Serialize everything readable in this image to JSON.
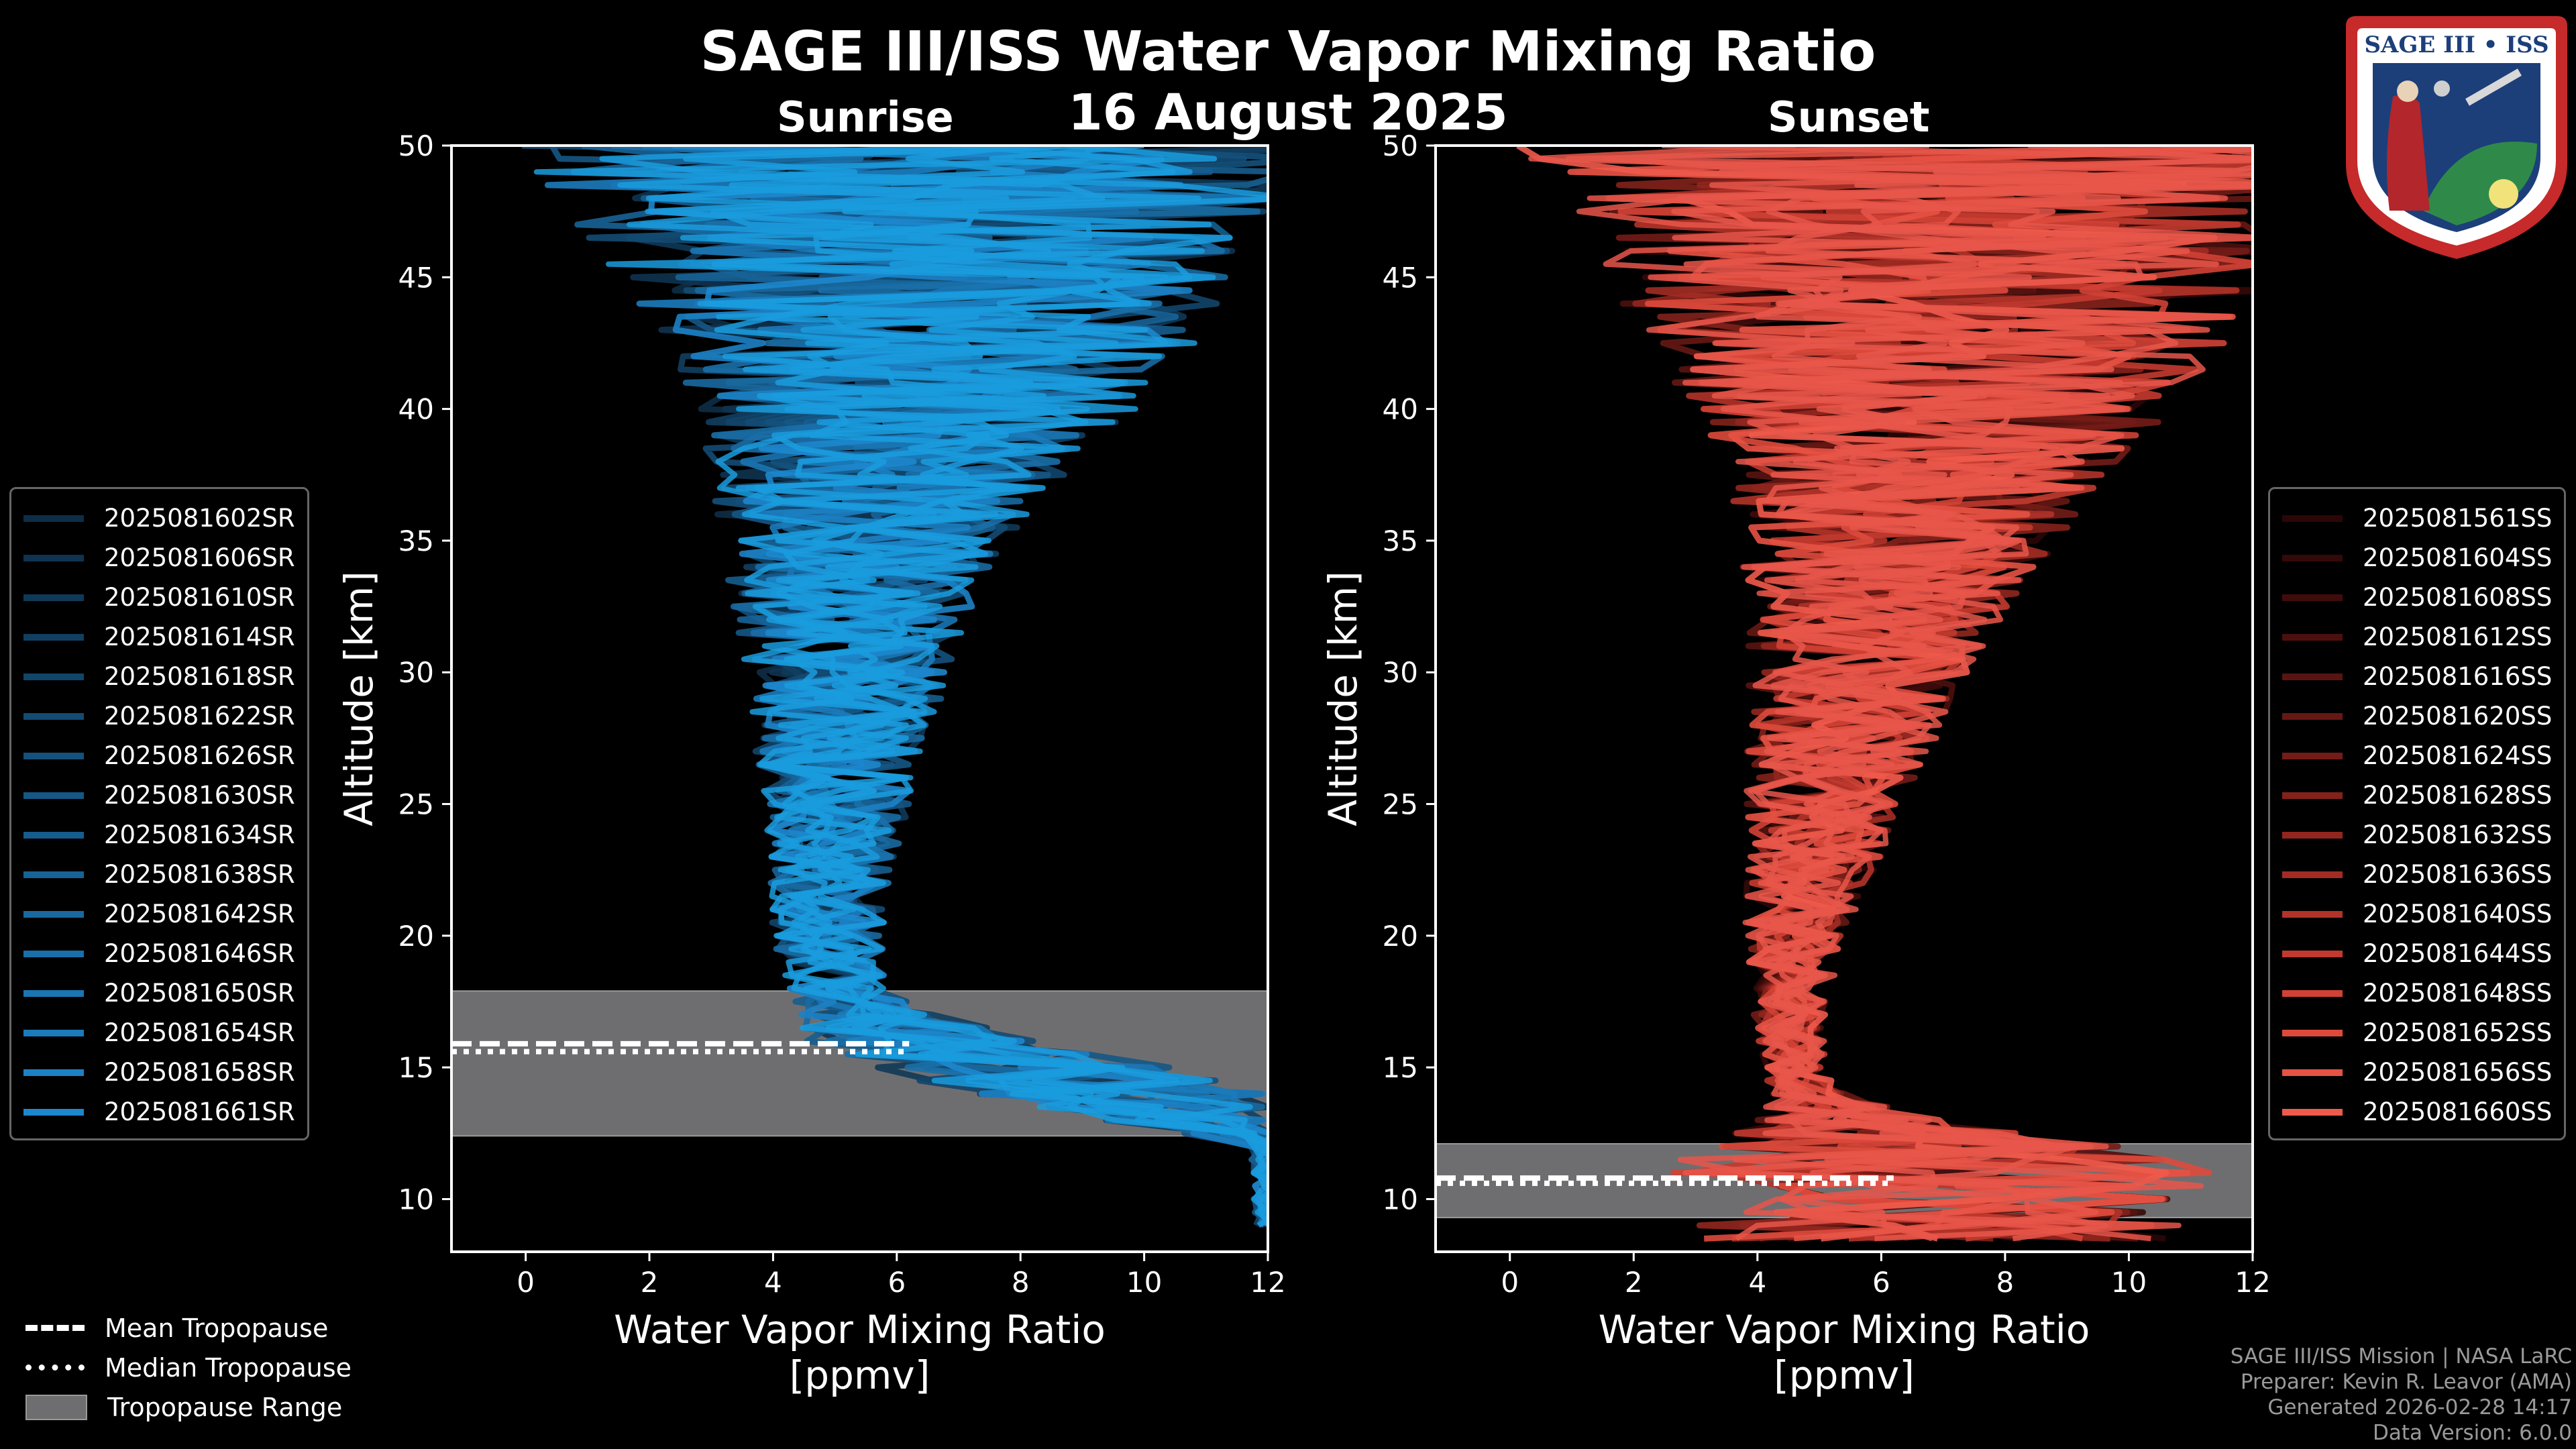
{
  "title": "SAGE III/ISS Water Vapor Mixing Ratio",
  "date": "16 August 2025",
  "logo_text": "SAGE III • ISS",
  "credits": [
    "SAGE III/ISS Mission | NASA LaRC",
    "Preparer: Kevin R. Leavor (AMA)",
    "Generated 2026-02-28 14:17",
    "Data Version: 6.0.0"
  ],
  "tropopause_legend": [
    {
      "label": "Mean Tropopause",
      "style": "dash"
    },
    {
      "label": "Median Tropopause",
      "style": "dot"
    },
    {
      "label": "Tropopause Range",
      "style": "box"
    }
  ],
  "chart_data": [
    {
      "type": "line",
      "panel": "Sunrise",
      "title": "Sunrise",
      "xlabel": "Water Vapor Mixing Ratio\n[ppmv]",
      "xlabel_lines": [
        "Water Vapor Mixing Ratio",
        "[ppmv]"
      ],
      "ylabel": "Altitude [km]",
      "xlim": [
        -1.2,
        12
      ],
      "ylim": [
        8,
        50
      ],
      "xticks": [
        0,
        2,
        4,
        6,
        8,
        10,
        12
      ],
      "yticks": [
        10,
        15,
        20,
        25,
        30,
        35,
        40,
        45,
        50
      ],
      "color": "#1a9cde",
      "tropopause": {
        "min": 12.4,
        "max": 17.9,
        "mean": 15.9,
        "median": 15.6
      },
      "series_names": [
        "2025081602SR",
        "2025081606SR",
        "2025081610SR",
        "2025081614SR",
        "2025081618SR",
        "2025081622SR",
        "2025081626SR",
        "2025081630SR",
        "2025081634SR",
        "2025081638SR",
        "2025081642SR",
        "2025081646SR",
        "2025081650SR",
        "2025081654SR",
        "2025081658SR",
        "2025081661SR"
      ],
      "legend_colors": [
        "#0e2e47",
        "#0f3350",
        "#103958",
        "#113f61",
        "#12456a",
        "#134b73",
        "#14517c",
        "#155785",
        "#165d8e",
        "#176397",
        "#1869a0",
        "#196fa9",
        "#1a75b2",
        "#1b7bbb",
        "#1c81c4",
        "#1d87cd"
      ],
      "profile": {
        "alt": [
          9,
          12,
          14,
          15,
          16,
          17,
          18,
          20,
          22,
          25,
          28,
          30,
          33,
          35,
          38,
          40,
          43,
          45,
          48,
          50
        ],
        "mean": [
          12,
          12,
          9.5,
          8,
          6.5,
          5.5,
          5,
          4.9,
          4.9,
          5,
          5.1,
          5.2,
          5.3,
          5.5,
          5.9,
          6.3,
          6.5,
          6.5,
          6.5,
          6.5
        ],
        "spread": [
          0.2,
          0.3,
          2.5,
          2.5,
          2,
          1.2,
          0.8,
          0.9,
          1,
          1.2,
          1.5,
          1.7,
          2,
          2.3,
          3,
          3.6,
          4.5,
          5,
          6,
          7
        ]
      }
    },
    {
      "type": "line",
      "panel": "Sunset",
      "title": "Sunset",
      "xlabel": "Water Vapor Mixing Ratio\n[ppmv]",
      "xlabel_lines": [
        "Water Vapor Mixing Ratio",
        "[ppmv]"
      ],
      "ylabel": "Altitude [km]",
      "xlim": [
        -1.2,
        12
      ],
      "ylim": [
        8,
        50
      ],
      "xticks": [
        0,
        2,
        4,
        6,
        8,
        10,
        12
      ],
      "yticks": [
        10,
        15,
        20,
        25,
        30,
        35,
        40,
        45,
        50
      ],
      "color": "#e8564a",
      "tropopause": {
        "min": 9.3,
        "max": 12.1,
        "mean": 10.8,
        "median": 10.6
      },
      "series_names": [
        "2025081561SS",
        "2025081604SS",
        "2025081608SS",
        "2025081612SS",
        "2025081616SS",
        "2025081620SS",
        "2025081624SS",
        "2025081628SS",
        "2025081632SS",
        "2025081636SS",
        "2025081640SS",
        "2025081644SS",
        "2025081648SS",
        "2025081652SS",
        "2025081656SS",
        "2025081660SS"
      ],
      "legend_colors": [
        "#2a0707",
        "#340909",
        "#3f0c0b",
        "#4b100e",
        "#581411",
        "#661814",
        "#741c17",
        "#83211b",
        "#92261f",
        "#a22c24",
        "#b23329",
        "#c23a2f",
        "#d14135",
        "#dd4a3c",
        "#e65244",
        "#ee5a4b"
      ],
      "profile": {
        "alt": [
          8.5,
          10,
          11,
          12,
          13,
          14,
          15,
          17,
          20,
          22,
          25,
          28,
          30,
          33,
          35,
          38,
          40,
          43,
          45,
          48,
          50
        ],
        "mean": [
          7,
          7,
          7,
          6.5,
          5.5,
          4.8,
          4.6,
          4.5,
          4.6,
          4.8,
          5.1,
          5.4,
          5.6,
          6,
          6.3,
          6.6,
          6.8,
          7,
          7,
          7,
          7
        ],
        "spread": [
          4,
          4,
          4.5,
          3.5,
          1.5,
          0.6,
          0.5,
          0.6,
          0.8,
          1,
          1.3,
          1.6,
          1.8,
          2.2,
          2.6,
          3.2,
          4,
          5,
          5.5,
          6,
          7
        ]
      }
    }
  ]
}
